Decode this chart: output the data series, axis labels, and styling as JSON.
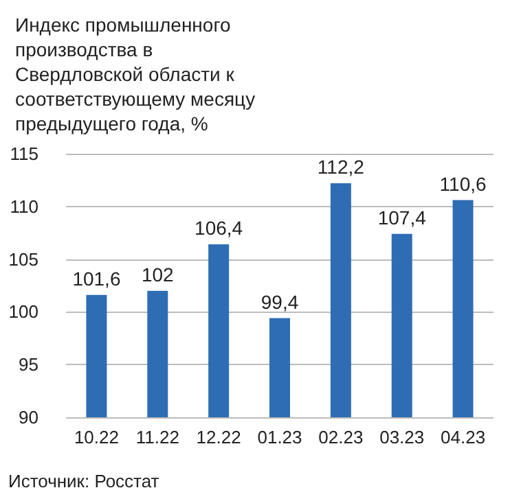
{
  "chart_data": {
    "type": "bar",
    "title": "Индекс промышленного производства в Свердловской области к соответствующему месяцу предыдущего года, %",
    "categories": [
      "10.22",
      "11.22",
      "12.22",
      "01.23",
      "02.23",
      "03.23",
      "04.23"
    ],
    "values": [
      101.6,
      102,
      106.4,
      99.4,
      112.2,
      107.4,
      110.6
    ],
    "value_labels": [
      "101,6",
      "102",
      "106,4",
      "99,4",
      "112,2",
      "107,4",
      "110,6"
    ],
    "color": "#2e6db4",
    "ylim": [
      90,
      115
    ],
    "yticks": [
      90,
      95,
      100,
      105,
      110,
      115
    ],
    "grid": "y",
    "annotations": [
      "Источник: Росстат"
    ]
  }
}
